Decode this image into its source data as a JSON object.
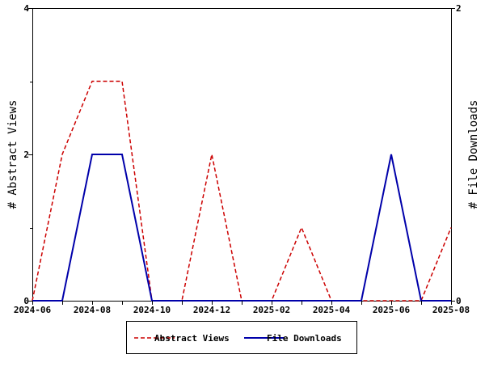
{
  "chart_data": {
    "type": "line",
    "x": [
      "2024-06",
      "2024-07",
      "2024-08",
      "2024-09",
      "2024-10",
      "2024-11",
      "2024-12",
      "2025-01",
      "2025-02",
      "2025-03",
      "2025-04",
      "2025-05",
      "2025-06",
      "2025-07",
      "2025-08"
    ],
    "x_tick_labels": [
      "2024-06",
      "2024-08",
      "2024-10",
      "2024-12",
      "2025-02",
      "2025-04",
      "2025-06",
      "2025-08"
    ],
    "series": [
      {
        "name": "Abstract Views",
        "axis": "left",
        "color": "#cc0000",
        "line_style": "dashed",
        "values": [
          0,
          2,
          3,
          3,
          0,
          0,
          2,
          0,
          0,
          1,
          0,
          0,
          0,
          0,
          1
        ]
      },
      {
        "name": "File Downloads",
        "axis": "right",
        "color": "#0000aa",
        "line_style": "solid",
        "values": [
          0,
          0,
          1,
          1,
          0,
          0,
          0,
          0,
          0,
          0,
          0,
          0,
          1,
          0,
          0
        ]
      }
    ],
    "ylabel_left": "# Abstract Views",
    "ylabel_right": "# File Downloads",
    "ylim_left": [
      0,
      4
    ],
    "ylim_right": [
      0,
      2
    ],
    "y_ticks_left": [
      "0",
      "2",
      "4"
    ],
    "y_ticks_right": [
      "0",
      "2"
    ],
    "grid": false,
    "legend_position": "bottom-center"
  }
}
